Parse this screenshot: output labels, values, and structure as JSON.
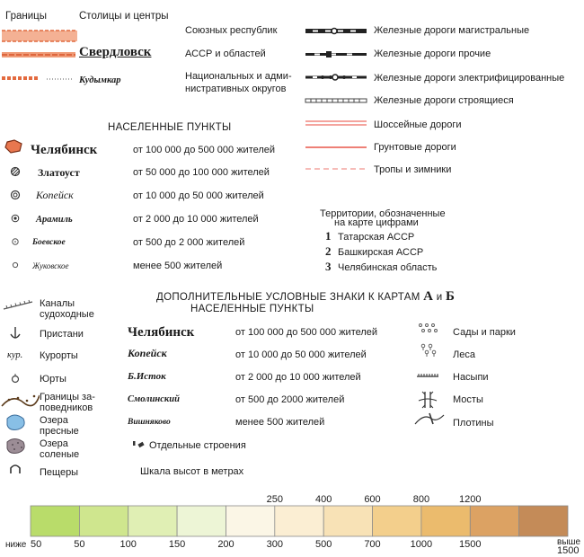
{
  "legend_top": {
    "borders_label": "Границы",
    "capitals_label": "Столицы и центры",
    "union_republics": "Союзных республик",
    "assr_oblasts": "АССР и областей",
    "national_okrugs_1": "Национальных и адми-",
    "national_okrugs_2": "нистративных округов",
    "sample_oblast_center": "Свердловск",
    "sample_okrug_center": "Кудымкар"
  },
  "roads": [
    "Железные дороги магистральные",
    "Железные дороги прочие",
    "Железные дороги электрифицированные",
    "Железные дороги строящиеся",
    "Шоссейные дороги",
    "Грунтовые дороги",
    "Тропы и зимники"
  ],
  "settlements": {
    "heading": "НАСЕЛЕННЫЕ ПУНКТЫ",
    "rows": [
      {
        "name": "Челябинск",
        "range": "от 100 000 до 500 000 жителей"
      },
      {
        "name": "Златоуст",
        "range": "от 50 000 до 100 000 жителей"
      },
      {
        "name": "Копейск",
        "range": "от 10 000 до 50 000 жителей"
      },
      {
        "name": "Арамиль",
        "range": "от 2 000 до 10 000 жителей"
      },
      {
        "name": "Боевское",
        "range": "от 500 до 2 000 жителей"
      },
      {
        "name": "Жуковское",
        "range": "менее 500 жителей"
      }
    ]
  },
  "territories": {
    "heading_1": "Территории, обозначенные",
    "heading_2": "на карте цифрами",
    "items": [
      {
        "num": "1",
        "label": "Татарская АССР"
      },
      {
        "num": "2",
        "label": "Башкирская АССР"
      },
      {
        "num": "3",
        "label": "Челябинская область"
      }
    ]
  },
  "additional": {
    "heading_prefix": "ДОПОЛНИТЕЛЬНЫЕ УСЛОВНЫЕ ЗНАКИ К КАРТАМ",
    "heading_a": "А",
    "heading_and": "и",
    "heading_b": "Б",
    "sub_heading": "НАСЕЛЕННЫЕ ПУНКТЫ",
    "left_items": [
      {
        "label_1": "Каналы",
        "label_2": "судоходные"
      },
      {
        "label_1": "Пристани",
        "label_2": ""
      },
      {
        "label_1": "Курорты",
        "label_2": "",
        "symbol_text": "кур."
      },
      {
        "label_1": "Юрты",
        "label_2": ""
      },
      {
        "label_1": "Границы за-",
        "label_2": "поведников"
      },
      {
        "label_1": "Озера",
        "label_2": "пресные"
      },
      {
        "label_1": "Озера",
        "label_2": "соленые"
      },
      {
        "label_1": "Пещеры",
        "label_2": ""
      }
    ],
    "settlement_rows": [
      {
        "name": "Челябинск",
        "range": "от 100 000 до 500 000 жителей"
      },
      {
        "name": "Копейск",
        "range": "от 10 000 до 50 000 жителей"
      },
      {
        "name": "Б.Исток",
        "range": "от 2 000 до 10 000 жителей"
      },
      {
        "name": "Смолинский",
        "range": "от 500 до 2000 жителей"
      },
      {
        "name": "Вишняково",
        "range": "менее   500 жителей"
      }
    ],
    "separate_buildings": "Отдельные строения",
    "right_items": [
      "Сады и парки",
      "Леса",
      "Насыпи",
      "Мосты",
      "Плотины"
    ]
  },
  "height_scale": {
    "title": "Шкала высот в метрах",
    "upper_labels": [
      "250",
      "400",
      "600",
      "800",
      "1200"
    ],
    "lower_labels": [
      "50",
      "100",
      "150",
      "200",
      "300",
      "500",
      "700",
      "1000",
      "1500"
    ],
    "left_label_1": "ниже",
    "left_label_2": "50",
    "right_label_1": "выше",
    "right_label_2": "1500",
    "colors": [
      "#b9dc6a",
      "#cfe68e",
      "#e0efb4",
      "#edf5d6",
      "#fbf6e6",
      "#fbeed3",
      "#f8e2b6",
      "#f3cf8c",
      "#ebbb6d",
      "#dca263",
      "#c48b58"
    ]
  }
}
